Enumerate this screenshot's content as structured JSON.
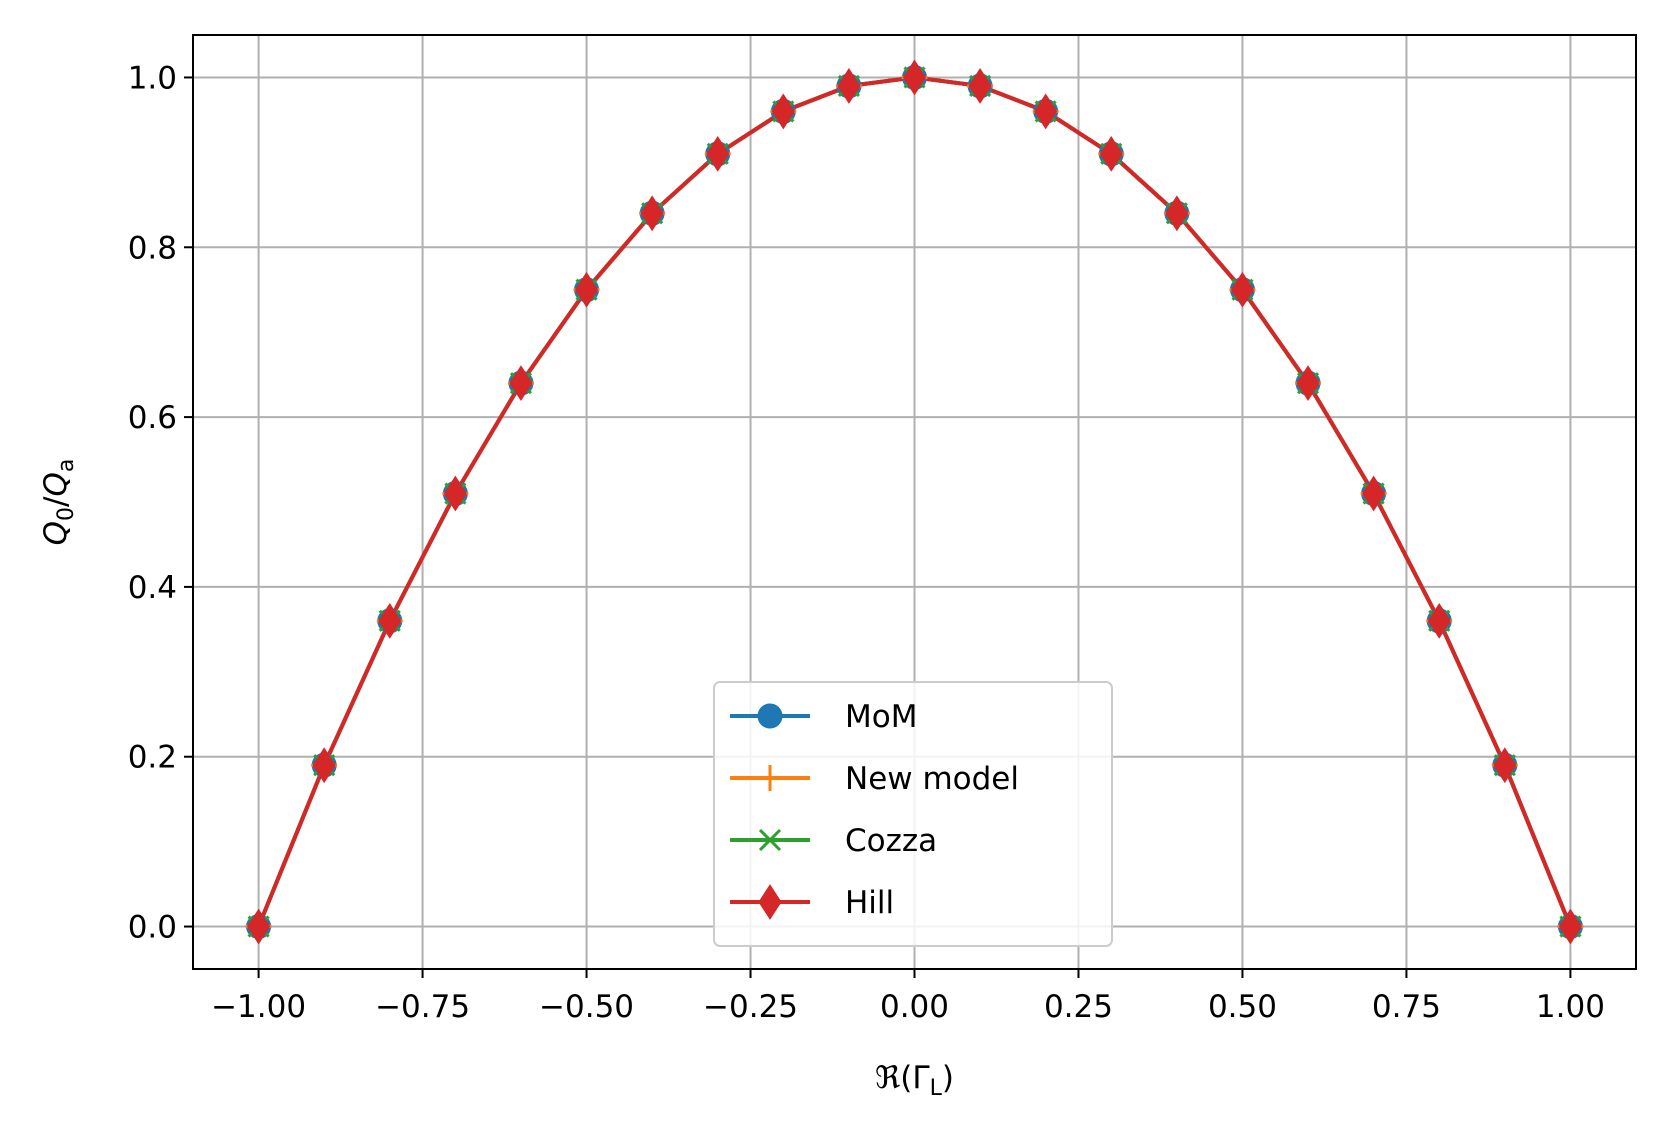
{
  "chart_data": {
    "type": "line",
    "title": "",
    "xlabel": "ℜ(Γ_L)",
    "xlabel_parts": {
      "main": "ℜ(Γ",
      "sub": "L",
      "close": ")"
    },
    "ylabel": "Q_0/Q_a",
    "ylabel_parts": {
      "q1": "Q",
      "sub1": "0",
      "slash": "/",
      "q2": "Q",
      "sub2": "a"
    },
    "xlim": [
      -1.1,
      1.1
    ],
    "ylim": [
      -0.05,
      1.05
    ],
    "grid": true,
    "legend_position": "lower center",
    "x_ticks": [
      -1.0,
      -0.75,
      -0.5,
      -0.25,
      0.0,
      0.25,
      0.5,
      0.75,
      1.0
    ],
    "x_tick_labels": [
      "−1.00",
      "−0.75",
      "−0.50",
      "−0.25",
      "0.00",
      "0.25",
      "0.50",
      "0.75",
      "1.00"
    ],
    "y_ticks": [
      0.0,
      0.2,
      0.4,
      0.6,
      0.8,
      1.0
    ],
    "y_tick_labels": [
      "0.0",
      "0.2",
      "0.4",
      "0.6",
      "0.8",
      "1.0"
    ],
    "x": [
      -1.0,
      -0.9,
      -0.8,
      -0.7,
      -0.6,
      -0.5,
      -0.4,
      -0.3,
      -0.2,
      -0.1,
      0.0,
      0.1,
      0.2,
      0.3,
      0.4,
      0.5,
      0.6,
      0.7,
      0.8,
      0.9,
      1.0
    ],
    "series": [
      {
        "name": "MoM",
        "color": "#1f77b4",
        "marker": "circle",
        "values": [
          0.0,
          0.19,
          0.36,
          0.51,
          0.64,
          0.75,
          0.84,
          0.91,
          0.96,
          0.99,
          1.0,
          0.99,
          0.96,
          0.91,
          0.84,
          0.75,
          0.64,
          0.51,
          0.36,
          0.19,
          0.0
        ]
      },
      {
        "name": "New model",
        "color": "#ff7f0e",
        "marker": "plus",
        "values": [
          0.0,
          0.19,
          0.36,
          0.51,
          0.64,
          0.75,
          0.84,
          0.91,
          0.96,
          0.99,
          1.0,
          0.99,
          0.96,
          0.91,
          0.84,
          0.75,
          0.64,
          0.51,
          0.36,
          0.19,
          0.0
        ]
      },
      {
        "name": "Cozza",
        "color": "#2ca02c",
        "marker": "x",
        "values": [
          0.0,
          0.19,
          0.36,
          0.51,
          0.64,
          0.75,
          0.84,
          0.91,
          0.96,
          0.99,
          1.0,
          0.99,
          0.96,
          0.91,
          0.84,
          0.75,
          0.64,
          0.51,
          0.36,
          0.19,
          0.0
        ]
      },
      {
        "name": "Hill",
        "color": "#d62728",
        "marker": "thin-diamond",
        "values": [
          0.0,
          0.19,
          0.36,
          0.51,
          0.64,
          0.75,
          0.84,
          0.91,
          0.96,
          0.99,
          1.0,
          0.99,
          0.96,
          0.91,
          0.84,
          0.75,
          0.64,
          0.51,
          0.36,
          0.19,
          0.0
        ]
      }
    ]
  }
}
